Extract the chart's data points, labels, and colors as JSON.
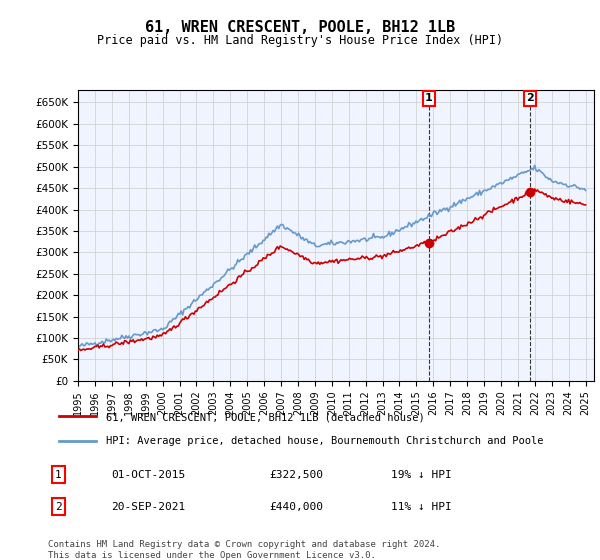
{
  "title": "61, WREN CRESCENT, POOLE, BH12 1LB",
  "subtitle": "Price paid vs. HM Land Registry's House Price Index (HPI)",
  "ylabel_ticks": [
    "£0",
    "£50K",
    "£100K",
    "£150K",
    "£200K",
    "£250K",
    "£300K",
    "£350K",
    "£400K",
    "£450K",
    "£500K",
    "£550K",
    "£600K",
    "£650K"
  ],
  "ytick_vals": [
    0,
    50000,
    100000,
    150000,
    200000,
    250000,
    300000,
    350000,
    400000,
    450000,
    500000,
    550000,
    600000,
    650000
  ],
  "ylim": [
    0,
    680000
  ],
  "hpi_color": "#6699cc",
  "price_color": "#cc0000",
  "background_color": "#ffffff",
  "grid_color": "#cccccc",
  "purchase1": {
    "date_num": 2015.75,
    "price": 322500,
    "label": "1"
  },
  "purchase2": {
    "date_num": 2021.72,
    "price": 440000,
    "label": "2"
  },
  "annotation1": {
    "date": "01-OCT-2015",
    "price": "£322,500",
    "pct": "19% ↓ HPI"
  },
  "annotation2": {
    "date": "20-SEP-2021",
    "price": "£440,000",
    "pct": "11% ↓ HPI"
  },
  "legend_line1": "61, WREN CRESCENT, POOLE, BH12 1LB (detached house)",
  "legend_line2": "HPI: Average price, detached house, Bournemouth Christchurch and Poole",
  "footer": "Contains HM Land Registry data © Crown copyright and database right 2024.\nThis data is licensed under the Open Government Licence v3.0.",
  "xmin": 1995,
  "xmax": 2025.5
}
